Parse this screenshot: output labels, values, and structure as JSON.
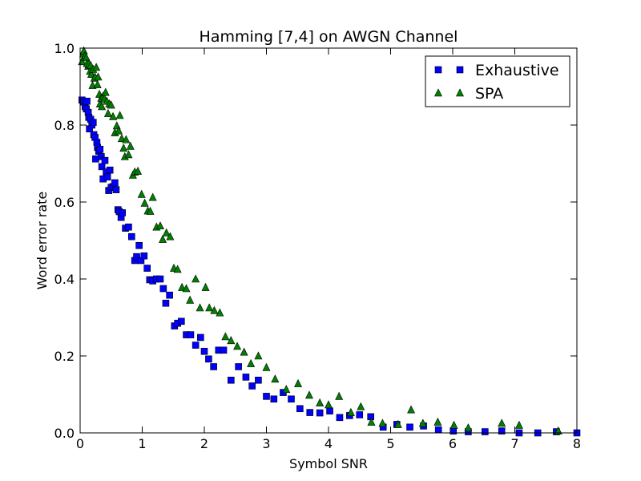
{
  "chart_data": {
    "type": "scatter",
    "title": "Hamming [7,4] on AWGN Channel",
    "xlabel": "Symbol SNR",
    "ylabel": "Word error rate",
    "xlim": [
      0,
      8
    ],
    "ylim": [
      0,
      1
    ],
    "xticks": [
      "0",
      "1",
      "2",
      "3",
      "4",
      "5",
      "6",
      "7",
      "8"
    ],
    "yticks": [
      "0.0",
      "0.2",
      "0.4",
      "0.6",
      "0.8",
      "1.0"
    ],
    "grid": false,
    "legend_position": "top-right",
    "series": [
      {
        "name": "Exhaustive",
        "marker": "square",
        "color": "#0000ff",
        "points": [
          [
            0.03,
            0.865
          ],
          [
            0.06,
            0.86
          ],
          [
            0.08,
            0.848
          ],
          [
            0.1,
            0.842
          ],
          [
            0.11,
            0.862
          ],
          [
            0.13,
            0.833
          ],
          [
            0.14,
            0.82
          ],
          [
            0.15,
            0.79
          ],
          [
            0.17,
            0.815
          ],
          [
            0.19,
            0.8
          ],
          [
            0.21,
            0.807
          ],
          [
            0.22,
            0.775
          ],
          [
            0.24,
            0.768
          ],
          [
            0.25,
            0.712
          ],
          [
            0.27,
            0.755
          ],
          [
            0.28,
            0.742
          ],
          [
            0.3,
            0.732
          ],
          [
            0.32,
            0.737
          ],
          [
            0.34,
            0.718
          ],
          [
            0.35,
            0.692
          ],
          [
            0.37,
            0.66
          ],
          [
            0.4,
            0.708
          ],
          [
            0.42,
            0.678
          ],
          [
            0.44,
            0.665
          ],
          [
            0.46,
            0.63
          ],
          [
            0.48,
            0.683
          ],
          [
            0.5,
            0.638
          ],
          [
            0.53,
            0.64
          ],
          [
            0.56,
            0.65
          ],
          [
            0.58,
            0.632
          ],
          [
            0.61,
            0.58
          ],
          [
            0.63,
            0.575
          ],
          [
            0.66,
            0.56
          ],
          [
            0.68,
            0.572
          ],
          [
            0.73,
            0.532
          ],
          [
            0.78,
            0.535
          ],
          [
            0.83,
            0.51
          ],
          [
            0.88,
            0.448
          ],
          [
            0.91,
            0.458
          ],
          [
            0.95,
            0.487
          ],
          [
            0.98,
            0.448
          ],
          [
            1.03,
            0.46
          ],
          [
            1.08,
            0.428
          ],
          [
            1.12,
            0.398
          ],
          [
            1.17,
            0.395
          ],
          [
            1.23,
            0.4
          ],
          [
            1.29,
            0.4
          ],
          [
            1.34,
            0.375
          ],
          [
            1.38,
            0.337
          ],
          [
            1.44,
            0.358
          ],
          [
            1.52,
            0.278
          ],
          [
            1.57,
            0.285
          ],
          [
            1.63,
            0.29
          ],
          [
            1.71,
            0.255
          ],
          [
            1.78,
            0.255
          ],
          [
            1.86,
            0.228
          ],
          [
            1.94,
            0.248
          ],
          [
            2.0,
            0.212
          ],
          [
            2.07,
            0.192
          ],
          [
            2.15,
            0.172
          ],
          [
            2.23,
            0.215
          ],
          [
            2.31,
            0.215
          ],
          [
            2.43,
            0.137
          ],
          [
            2.55,
            0.172
          ],
          [
            2.67,
            0.145
          ],
          [
            2.77,
            0.122
          ],
          [
            2.87,
            0.137
          ],
          [
            3.0,
            0.095
          ],
          [
            3.12,
            0.088
          ],
          [
            3.27,
            0.105
          ],
          [
            3.4,
            0.088
          ],
          [
            3.54,
            0.063
          ],
          [
            3.7,
            0.053
          ],
          [
            3.86,
            0.052
          ],
          [
            4.02,
            0.057
          ],
          [
            4.18,
            0.04
          ],
          [
            4.34,
            0.045
          ],
          [
            4.5,
            0.047
          ],
          [
            4.68,
            0.042
          ],
          [
            4.88,
            0.015
          ],
          [
            5.1,
            0.022
          ],
          [
            5.31,
            0.015
          ],
          [
            5.53,
            0.018
          ],
          [
            5.77,
            0.008
          ],
          [
            6.01,
            0.005
          ],
          [
            6.25,
            0.003
          ],
          [
            6.52,
            0.003
          ],
          [
            6.79,
            0.005
          ],
          [
            7.07,
            0.0
          ],
          [
            7.37,
            0.0
          ],
          [
            7.67,
            0.003
          ],
          [
            8.0,
            0.0
          ]
        ]
      },
      {
        "name": "SPA",
        "marker": "triangle",
        "color": "#008000",
        "points": [
          [
            0.03,
            0.965
          ],
          [
            0.05,
            0.985
          ],
          [
            0.06,
            0.993
          ],
          [
            0.07,
            0.977
          ],
          [
            0.08,
            0.98
          ],
          [
            0.1,
            0.975
          ],
          [
            0.11,
            0.96
          ],
          [
            0.13,
            0.953
          ],
          [
            0.14,
            0.958
          ],
          [
            0.16,
            0.94
          ],
          [
            0.17,
            0.955
          ],
          [
            0.18,
            0.932
          ],
          [
            0.2,
            0.903
          ],
          [
            0.21,
            0.945
          ],
          [
            0.23,
            0.922
          ],
          [
            0.24,
            0.925
          ],
          [
            0.26,
            0.95
          ],
          [
            0.28,
            0.905
          ],
          [
            0.29,
            0.925
          ],
          [
            0.31,
            0.88
          ],
          [
            0.32,
            0.855
          ],
          [
            0.34,
            0.87
          ],
          [
            0.35,
            0.848
          ],
          [
            0.37,
            0.875
          ],
          [
            0.39,
            0.868
          ],
          [
            0.41,
            0.885
          ],
          [
            0.43,
            0.862
          ],
          [
            0.45,
            0.83
          ],
          [
            0.47,
            0.855
          ],
          [
            0.5,
            0.852
          ],
          [
            0.53,
            0.822
          ],
          [
            0.56,
            0.78
          ],
          [
            0.59,
            0.798
          ],
          [
            0.62,
            0.785
          ],
          [
            0.64,
            0.825
          ],
          [
            0.67,
            0.765
          ],
          [
            0.7,
            0.74
          ],
          [
            0.72,
            0.718
          ],
          [
            0.74,
            0.762
          ],
          [
            0.78,
            0.723
          ],
          [
            0.81,
            0.745
          ],
          [
            0.85,
            0.67
          ],
          [
            0.88,
            0.678
          ],
          [
            0.93,
            0.68
          ],
          [
            0.99,
            0.62
          ],
          [
            1.04,
            0.597
          ],
          [
            1.09,
            0.577
          ],
          [
            1.13,
            0.576
          ],
          [
            1.17,
            0.612
          ],
          [
            1.23,
            0.535
          ],
          [
            1.29,
            0.538
          ],
          [
            1.33,
            0.503
          ],
          [
            1.39,
            0.52
          ],
          [
            1.45,
            0.51
          ],
          [
            1.51,
            0.428
          ],
          [
            1.57,
            0.425
          ],
          [
            1.64,
            0.378
          ],
          [
            1.71,
            0.375
          ],
          [
            1.77,
            0.345
          ],
          [
            1.86,
            0.4
          ],
          [
            1.93,
            0.325
          ],
          [
            2.02,
            0.378
          ],
          [
            2.08,
            0.325
          ],
          [
            2.16,
            0.318
          ],
          [
            2.25,
            0.312
          ],
          [
            2.34,
            0.25
          ],
          [
            2.43,
            0.24
          ],
          [
            2.53,
            0.225
          ],
          [
            2.64,
            0.21
          ],
          [
            2.75,
            0.18
          ],
          [
            2.87,
            0.2
          ],
          [
            3.0,
            0.17
          ],
          [
            3.14,
            0.14
          ],
          [
            3.32,
            0.113
          ],
          [
            3.51,
            0.128
          ],
          [
            3.69,
            0.098
          ],
          [
            3.86,
            0.078
          ],
          [
            4.0,
            0.073
          ],
          [
            4.17,
            0.095
          ],
          [
            4.36,
            0.053
          ],
          [
            4.52,
            0.068
          ],
          [
            4.69,
            0.028
          ],
          [
            4.87,
            0.025
          ],
          [
            5.12,
            0.022
          ],
          [
            5.33,
            0.06
          ],
          [
            5.52,
            0.025
          ],
          [
            5.76,
            0.028
          ],
          [
            6.02,
            0.02
          ],
          [
            6.25,
            0.013
          ],
          [
            6.79,
            0.025
          ],
          [
            7.07,
            0.02
          ],
          [
            7.7,
            0.005
          ]
        ]
      }
    ]
  }
}
